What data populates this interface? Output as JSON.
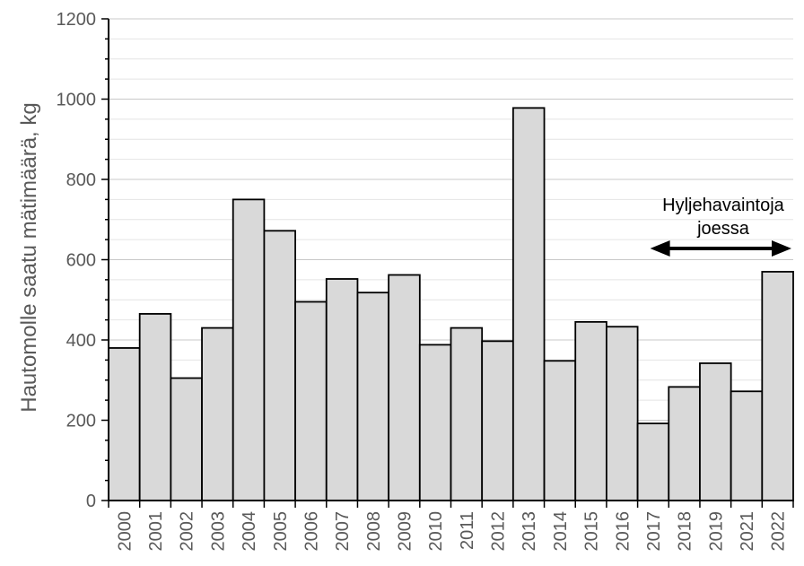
{
  "chart_data": {
    "type": "bar",
    "title": "",
    "xlabel": "",
    "ylabel": "Hautomolle saatu mätimäärä, kg",
    "ylim": [
      0,
      1200
    ],
    "yticks": [
      0,
      200,
      400,
      600,
      800,
      1000,
      1200
    ],
    "grid": true,
    "categories": [
      "2000",
      "2001",
      "2002",
      "2003",
      "2004",
      "2005",
      "2006",
      "2007",
      "2008",
      "2009",
      "2010",
      "2011",
      "2012",
      "2013",
      "2014",
      "2015",
      "2016",
      "2017",
      "2018",
      "2019",
      "2021",
      "2022"
    ],
    "values": [
      380,
      465,
      305,
      430,
      750,
      672,
      495,
      552,
      518,
      562,
      388,
      430,
      397,
      978,
      348,
      445,
      433,
      192,
      283,
      342,
      272,
      570
    ],
    "bar_fill": "#d9d9d9",
    "bar_stroke": "#000000",
    "annotation": {
      "lines": [
        "Hyljehavaintoja",
        "joessa"
      ],
      "arrow_from_category": "2017",
      "arrow_to_category": "2022"
    }
  }
}
